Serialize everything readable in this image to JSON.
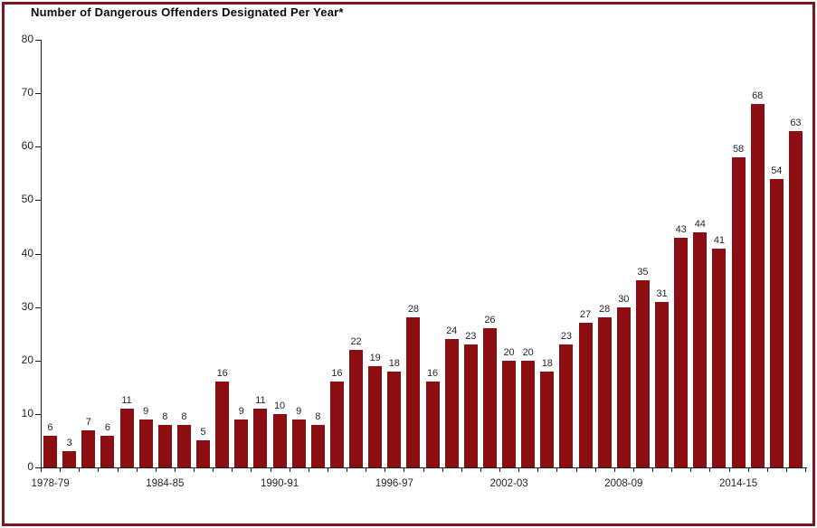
{
  "frame": {
    "border_color": "#7c1621",
    "background_color": "#ffffff"
  },
  "chart_data": {
    "type": "bar",
    "title": "Number of Dangerous Offenders Designated Per Year*",
    "values": [
      6,
      3,
      7,
      6,
      11,
      9,
      8,
      8,
      5,
      16,
      9,
      11,
      10,
      9,
      8,
      16,
      22,
      19,
      18,
      28,
      16,
      24,
      23,
      26,
      20,
      20,
      18,
      23,
      27,
      28,
      30,
      35,
      31,
      43,
      44,
      41,
      58,
      68,
      54,
      63
    ],
    "value_labels_shown": true,
    "bar_color": "#8b0f12",
    "x_tick_labels": [
      "1978-79",
      "1984-85",
      "1990-91",
      "1996-97",
      "2002-03",
      "2008-09",
      "2014-15"
    ],
    "x_tick_positions": [
      0,
      6,
      12,
      18,
      24,
      30,
      36
    ],
    "y_ticks": [
      0,
      10,
      20,
      30,
      40,
      50,
      60,
      70,
      80
    ],
    "ylim": [
      0,
      80
    ],
    "xlabel": "",
    "ylabel": "",
    "grid": false,
    "legend": false
  }
}
